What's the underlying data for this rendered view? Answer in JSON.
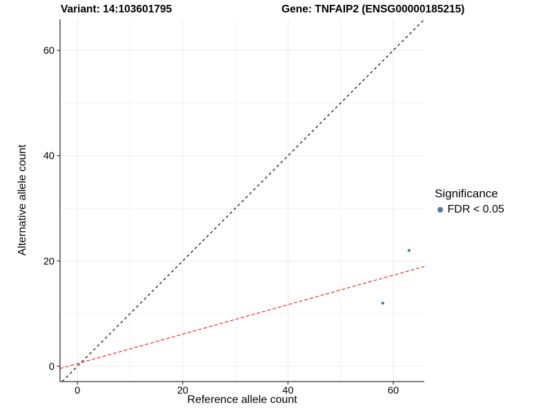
{
  "titles": {
    "left": "Variant: 14:103601795",
    "right": "Gene: TNFAIP2 (ENSG00000185215)"
  },
  "legend": {
    "title": "Significance",
    "items": [
      {
        "label": "FDR < 0.05",
        "color": "#4a7dab"
      }
    ]
  },
  "chart_data": {
    "type": "scatter",
    "xlabel": "Reference allele count",
    "ylabel": "Alternative allele count",
    "xlim": [
      -3.3,
      65.9
    ],
    "ylim": [
      -2.9,
      65.9
    ],
    "x_ticks": [
      0,
      20,
      40,
      60
    ],
    "y_ticks": [
      0,
      20,
      40,
      60
    ],
    "x_minor_gridlines": [
      10,
      30,
      50
    ],
    "y_minor_gridlines": [
      10,
      30,
      50
    ],
    "grid": true,
    "legend_position": "right",
    "series": [
      {
        "name": "FDR < 0.05",
        "color": "#4a7dab",
        "points": [
          {
            "x": 63,
            "y": 22
          },
          {
            "x": 58,
            "y": 12
          }
        ]
      }
    ],
    "reference_lines": [
      {
        "name": "identity-line",
        "slope": 1,
        "intercept": 0,
        "color": "#000000",
        "dash": "4 4"
      },
      {
        "name": "fit-line",
        "slope": 0.28,
        "intercept": 0.5,
        "color": "#f81f1f",
        "dash": "5 3"
      }
    ],
    "colors": {
      "grid_major": "#eaeaea",
      "grid_minor": "#f2f2f2",
      "axis_line": "#2f2f2f",
      "tick_label": "#000000"
    }
  }
}
